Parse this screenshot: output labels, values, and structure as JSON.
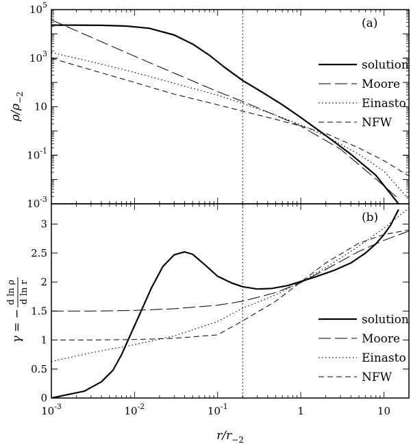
{
  "chart_data": [
    {
      "panel": "a",
      "type": "line",
      "panel_label": "(a)",
      "xlabel": "r/r₋₂",
      "ylabel": "ρ/ρ₋₂",
      "xscale": "log",
      "yscale": "log",
      "xlim": [
        0.001,
        20
      ],
      "ylim": [
        0.001,
        100000
      ],
      "y_ticks": [
        {
          "value": 0.001,
          "base": "10",
          "exp": "-3"
        },
        {
          "value": 0.1,
          "base": "10",
          "exp": "-1"
        },
        {
          "value": 10,
          "base": "10",
          "exp": ""
        },
        {
          "value": 1000,
          "base": "10",
          "exp": "3"
        },
        {
          "value": 100000,
          "base": "10",
          "exp": "5"
        }
      ],
      "reference_line_x": 0.2,
      "legend_position": "top-right",
      "series": [
        {
          "name": "solution",
          "style": "solid",
          "x": [
            0.001,
            0.002,
            0.004,
            0.008,
            0.015,
            0.03,
            0.05,
            0.08,
            0.12,
            0.2,
            0.35,
            0.6,
            1,
            2,
            4,
            8,
            15
          ],
          "y": [
            23000,
            22900,
            22500,
            21000,
            17000,
            9000,
            3800,
            1300,
            430,
            120,
            38,
            12,
            3.6,
            0.65,
            0.11,
            0.015,
            0.001
          ]
        },
        {
          "name": "Moore",
          "style": "longdash",
          "x": [
            0.001,
            0.01,
            0.1,
            0.2,
            1,
            3,
            10,
            15
          ],
          "y": [
            38000,
            1200,
            42,
            16.5,
            1.6,
            0.18,
            0.0055,
            0.0016
          ]
        },
        {
          "name": "Einasto",
          "style": "dotted",
          "x": [
            0.001,
            0.003,
            0.01,
            0.03,
            0.1,
            0.2,
            0.5,
            1,
            2,
            5,
            10,
            20
          ],
          "y": [
            1700,
            720,
            260,
            92,
            30,
            13.5,
            4.5,
            1.8,
            0.62,
            0.11,
            0.022,
            0.0015
          ]
        },
        {
          "name": "NFW",
          "style": "dashed",
          "x": [
            0.001,
            0.003,
            0.01,
            0.03,
            0.1,
            0.2,
            0.5,
            1,
            2,
            5,
            10,
            20
          ],
          "y": [
            1000,
            330,
            100,
            33,
            12,
            6.5,
            3,
            1.6,
            0.8,
            0.2,
            0.06,
            0.014
          ]
        }
      ]
    },
    {
      "panel": "b",
      "type": "line",
      "panel_label": "(b)",
      "xlabel": "r/r₋₂",
      "ylabel": "γ = − d ln ρ / d ln r",
      "ylabel_prefix": "γ = −",
      "ylabel_num": "d ln ρ",
      "ylabel_den": "d ln r",
      "xscale": "log",
      "yscale": "linear",
      "xlim": [
        0.001,
        20
      ],
      "ylim": [
        0,
        3.35
      ],
      "y_ticks": [
        {
          "value": 0,
          "label": "0"
        },
        {
          "value": 0.5,
          "label": "0.5"
        },
        {
          "value": 1,
          "label": "1"
        },
        {
          "value": 1.5,
          "label": "1.5"
        },
        {
          "value": 2,
          "label": "2"
        },
        {
          "value": 2.5,
          "label": "2.5"
        },
        {
          "value": 3,
          "label": "3"
        }
      ],
      "x_ticks": [
        {
          "value": 0.001,
          "base": "10",
          "exp": "-3"
        },
        {
          "value": 0.01,
          "base": "10",
          "exp": "-2"
        },
        {
          "value": 0.1,
          "base": "10",
          "exp": "-1"
        },
        {
          "value": 1,
          "base": "1",
          "exp": ""
        },
        {
          "value": 10,
          "base": "10",
          "exp": ""
        }
      ],
      "reference_line_x": 0.2,
      "legend_position": "bottom-right",
      "series": [
        {
          "name": "solution",
          "style": "solid",
          "x": [
            0.001,
            0.0025,
            0.004,
            0.0055,
            0.007,
            0.009,
            0.012,
            0.016,
            0.022,
            0.03,
            0.04,
            0.05,
            0.07,
            0.1,
            0.15,
            0.2,
            0.3,
            0.45,
            0.7,
            1,
            1.5,
            2.5,
            4,
            6,
            8,
            10,
            12,
            15
          ],
          "y": [
            0,
            0.12,
            0.28,
            0.48,
            0.75,
            1.1,
            1.5,
            1.9,
            2.27,
            2.47,
            2.52,
            2.48,
            2.3,
            2.1,
            1.98,
            1.92,
            1.88,
            1.89,
            1.94,
            2.01,
            2.09,
            2.2,
            2.33,
            2.5,
            2.66,
            2.82,
            2.98,
            3.25
          ]
        },
        {
          "name": "Moore",
          "style": "longdash",
          "x": [
            0.001,
            0.003,
            0.01,
            0.03,
            0.1,
            0.2,
            0.5,
            1,
            2,
            5,
            10,
            20
          ],
          "y": [
            1.5,
            1.5,
            1.51,
            1.54,
            1.6,
            1.67,
            1.82,
            1.99,
            2.22,
            2.53,
            2.72,
            2.88
          ]
        },
        {
          "name": "Einasto",
          "style": "dotted",
          "x": [
            0.001,
            0.003,
            0.01,
            0.03,
            0.1,
            0.2,
            0.5,
            1,
            2,
            5,
            10,
            20
          ],
          "y": [
            0.63,
            0.78,
            0.92,
            1.07,
            1.32,
            1.55,
            1.78,
            2.0,
            2.25,
            2.62,
            2.93,
            3.28
          ]
        },
        {
          "name": "NFW",
          "style": "dashed",
          "x": [
            0.001,
            0.003,
            0.01,
            0.03,
            0.1,
            0.2,
            0.5,
            1,
            2,
            5,
            10,
            20
          ],
          "y": [
            1.0,
            1.0,
            1.01,
            1.03,
            1.09,
            1.33,
            1.67,
            2.0,
            2.33,
            2.67,
            2.82,
            2.9
          ]
        }
      ]
    }
  ]
}
